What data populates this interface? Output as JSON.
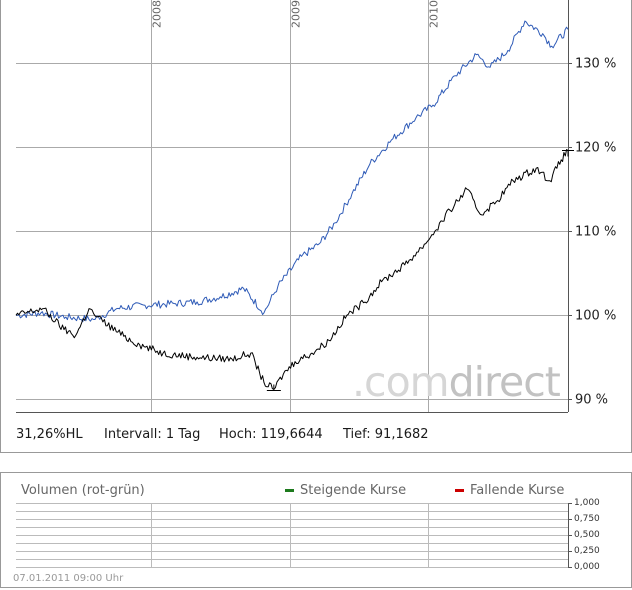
{
  "chart_data": [
    {
      "type": "line",
      "y_unit": "%",
      "ylim": [
        88.5,
        137.5
      ],
      "y_ticks": [
        90,
        100,
        110,
        120,
        130
      ],
      "y_tick_labels": [
        "90 %",
        "100 %",
        "110 %",
        "120 %",
        "130 %"
      ],
      "x_ticks": [
        "2008",
        "2009",
        "2010"
      ],
      "x_range": [
        "2007-01-08",
        "2011-01-07"
      ],
      "grid": true,
      "series": [
        {
          "color": "#2f5bb7",
          "points": [
            [
              "2007-01-08",
              100.0
            ],
            [
              "2007-03-15",
              100.3
            ],
            [
              "2007-05-20",
              99.8
            ],
            [
              "2007-08-01",
              99.5
            ],
            [
              "2007-10-01",
              100.8
            ],
            [
              "2007-12-15",
              101.2
            ],
            [
              "2008-03-01",
              101.4
            ],
            [
              "2008-05-01",
              101.6
            ],
            [
              "2008-07-01",
              102.2
            ],
            [
              "2008-09-01",
              103.2
            ],
            [
              "2008-10-25",
              100.3
            ],
            [
              "2008-12-01",
              103.5
            ],
            [
              "2009-02-01",
              107.0
            ],
            [
              "2009-03-20",
              108.5
            ],
            [
              "2009-05-01",
              111.0
            ],
            [
              "2009-06-15",
              114.5
            ],
            [
              "2009-08-01",
              118.0
            ],
            [
              "2009-10-01",
              121.0
            ],
            [
              "2009-12-01",
              123.5
            ],
            [
              "2010-01-15",
              125.0
            ],
            [
              "2010-03-15",
              128.5
            ],
            [
              "2010-05-10",
              131.0
            ],
            [
              "2010-06-15",
              129.5
            ],
            [
              "2010-08-01",
              131.5
            ],
            [
              "2010-09-15",
              135.0
            ],
            [
              "2010-11-01",
              133.5
            ],
            [
              "2010-11-25",
              132.0
            ],
            [
              "2011-01-07",
              134.0
            ]
          ]
        },
        {
          "color": "#000000",
          "points": [
            [
              "2007-01-08",
              100.0
            ],
            [
              "2007-03-20",
              100.8
            ],
            [
              "2007-05-15",
              98.3
            ],
            [
              "2007-06-15",
              97.6
            ],
            [
              "2007-07-20",
              100.8
            ],
            [
              "2007-08-10",
              99.8
            ],
            [
              "2007-10-20",
              97.5
            ],
            [
              "2007-12-01",
              96.5
            ],
            [
              "2008-02-01",
              95.5
            ],
            [
              "2008-05-01",
              95.0
            ],
            [
              "2008-08-01",
              94.8
            ],
            [
              "2008-09-20",
              95.5
            ],
            [
              "2008-10-25",
              92.0
            ],
            [
              "2008-11-20",
              91.2
            ],
            [
              "2008-12-15",
              93.0
            ],
            [
              "2009-01-15",
              94.5
            ],
            [
              "2009-03-01",
              95.5
            ],
            [
              "2009-04-15",
              97.0
            ],
            [
              "2009-06-01",
              100.0
            ],
            [
              "2009-07-15",
              101.5
            ],
            [
              "2009-09-01",
              104.0
            ],
            [
              "2009-11-01",
              106.0
            ],
            [
              "2009-12-15",
              108.0
            ],
            [
              "2010-01-20",
              110.0
            ],
            [
              "2010-03-01",
              112.5
            ],
            [
              "2010-04-15",
              115.0
            ],
            [
              "2010-05-20",
              112.0
            ],
            [
              "2010-07-01",
              113.5
            ],
            [
              "2010-08-15",
              116.0
            ],
            [
              "2010-10-15",
              117.5
            ],
            [
              "2010-11-20",
              116.0
            ],
            [
              "2010-12-20",
              118.5
            ],
            [
              "2011-01-07",
              119.6
            ]
          ]
        }
      ]
    },
    {
      "type": "bar",
      "title": "Volumen (rot-grün)",
      "y_ticks": [
        0,
        0.25,
        0.5,
        0.75,
        1.0
      ],
      "y_tick_labels": [
        "0,000",
        "0,250",
        "0,500",
        "0,750",
        "1,000"
      ],
      "legend": [
        "Steigende Kurse",
        "Fallende Kurse"
      ],
      "legend_colors": [
        "#1d7a1d",
        "#cc0000"
      ],
      "values": []
    }
  ],
  "stats": {
    "performance": "31,26%HL",
    "interval": "Intervall: 1 Tag",
    "high": "Hoch: 119,6644",
    "low": "Tief: 91,1682"
  },
  "watermark": {
    "dot_com": ".com",
    "direct": "direct"
  },
  "timestamp": "07.01.2011 09:00 Uhr"
}
